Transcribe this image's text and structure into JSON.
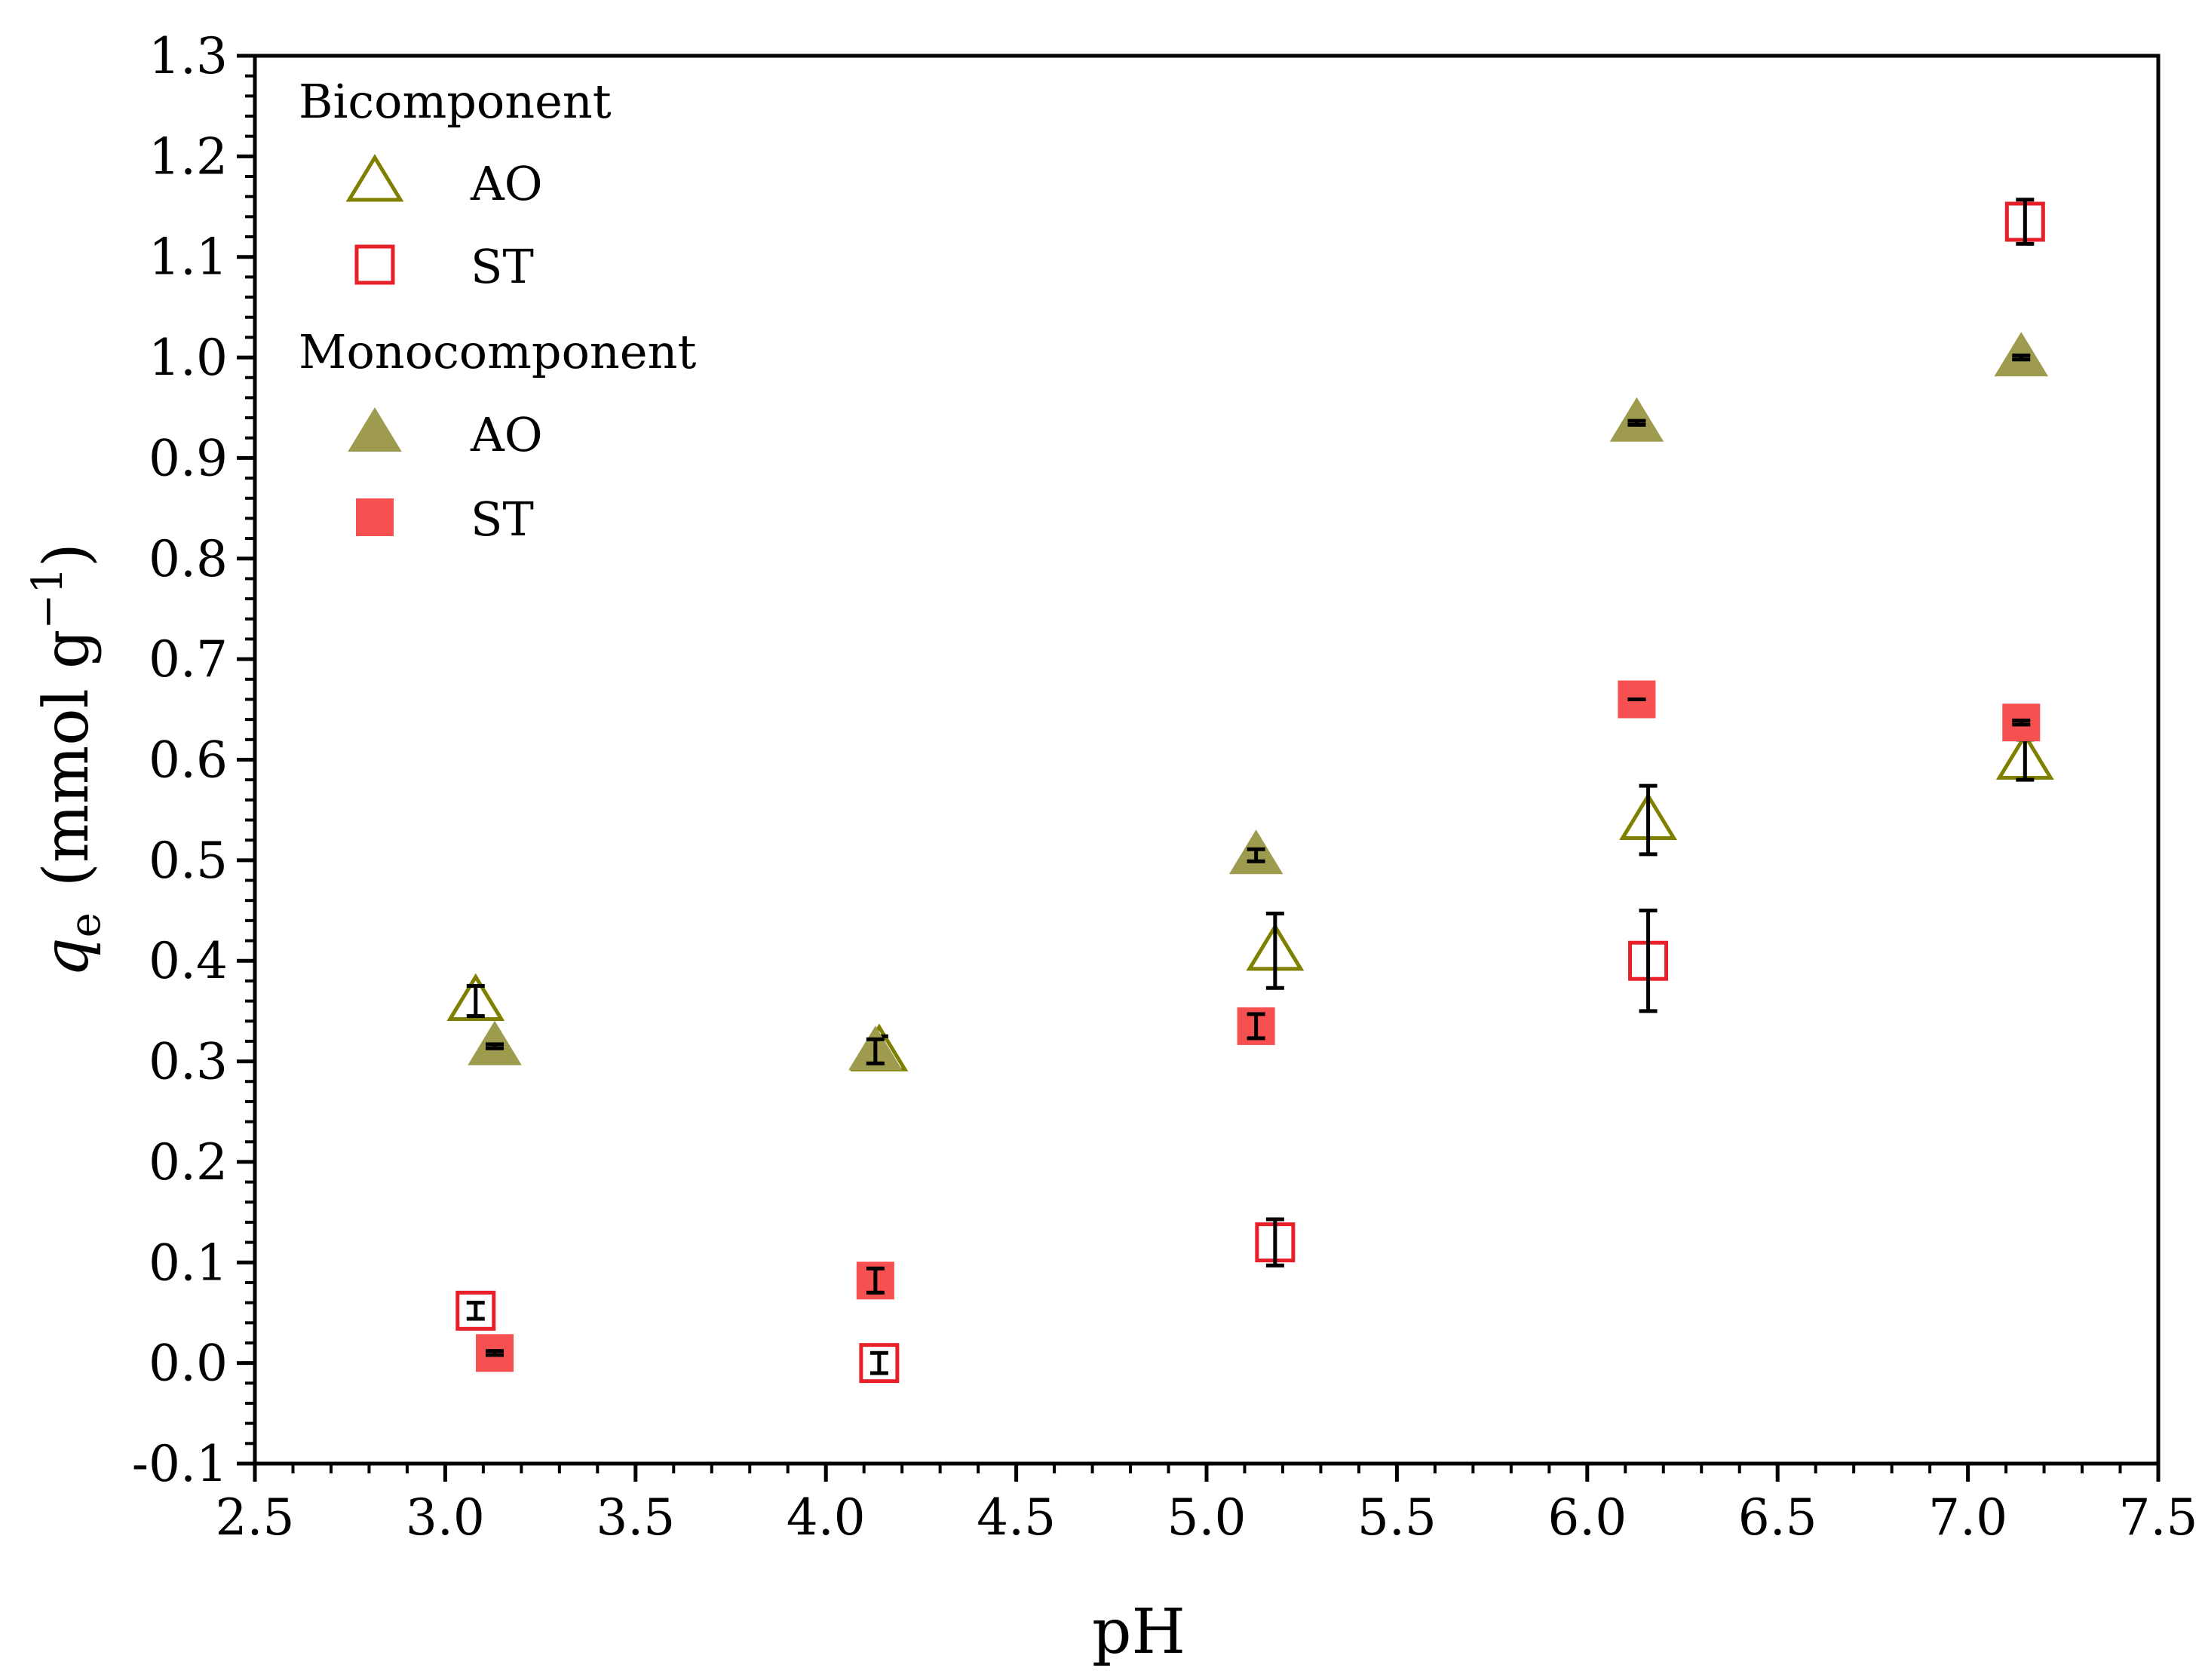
{
  "colors": {
    "ao": "#808000",
    "ao_fill": "#9E9A4E",
    "st": "#E8202A",
    "st_fill": "#F65050",
    "error_bar": "#000000",
    "axis": "#000000"
  },
  "chart_data": {
    "type": "scatter",
    "title": "",
    "xlabel": "pH",
    "ylabel": {
      "symbol": "q",
      "subscript": "e",
      "unit": "(mmol g",
      "superscript": "−1",
      "close": ")"
    },
    "xlim": [
      2.5,
      7.5
    ],
    "ylim": [
      -0.1,
      1.3
    ],
    "x_ticks": [
      "2.5",
      "3.0",
      "3.5",
      "4.0",
      "4.5",
      "5.0",
      "5.5",
      "6.0",
      "6.5",
      "7.0",
      "7.5"
    ],
    "y_ticks": [
      "-0.1",
      "0.0",
      "0.1",
      "0.2",
      "0.3",
      "0.4",
      "0.5",
      "0.6",
      "0.7",
      "0.8",
      "0.9",
      "1.0",
      "1.1",
      "1.2",
      "1.3"
    ],
    "grid": false,
    "legend_position": "top-left",
    "legend": {
      "groups": [
        {
          "title": "Bicomponent",
          "entries": [
            "AO",
            "ST"
          ]
        },
        {
          "title": "Monocomponent",
          "entries": [
            "AO",
            "ST"
          ]
        }
      ]
    },
    "series": [
      {
        "name": "AO",
        "group": "Bicomponent",
        "marker": "triangle-open",
        "color": "#808000",
        "x": [
          3.08,
          4.14,
          5.18,
          6.16,
          7.15
        ],
        "y": [
          0.36,
          0.31,
          0.41,
          0.54,
          0.6
        ],
        "err": [
          0.015,
          0.015,
          0.037,
          0.034,
          0.02
        ]
      },
      {
        "name": "ST",
        "group": "Bicomponent",
        "marker": "square-open",
        "color": "#E8202A",
        "x": [
          3.08,
          4.14,
          5.18,
          6.16,
          7.15
        ],
        "y": [
          0.052,
          0.0,
          0.12,
          0.4,
          1.135
        ],
        "err": [
          0.008,
          0.01,
          0.023,
          0.05,
          0.022
        ]
      },
      {
        "name": "AO",
        "group": "Monocomponent",
        "marker": "triangle-filled",
        "color": "#9E9A4E",
        "x": [
          3.13,
          4.13,
          5.13,
          6.13,
          7.14
        ],
        "y": [
          0.315,
          0.31,
          0.505,
          0.935,
          1.0
        ],
        "err": [
          0.002,
          0.012,
          0.006,
          0.002,
          0.002
        ]
      },
      {
        "name": "ST",
        "group": "Monocomponent",
        "marker": "square-filled",
        "color": "#F65050",
        "x": [
          3.13,
          4.13,
          5.13,
          6.13,
          7.14
        ],
        "y": [
          0.01,
          0.082,
          0.335,
          0.66,
          0.637
        ],
        "err": [
          0.002,
          0.012,
          0.012,
          0.0,
          0.002
        ]
      }
    ]
  }
}
